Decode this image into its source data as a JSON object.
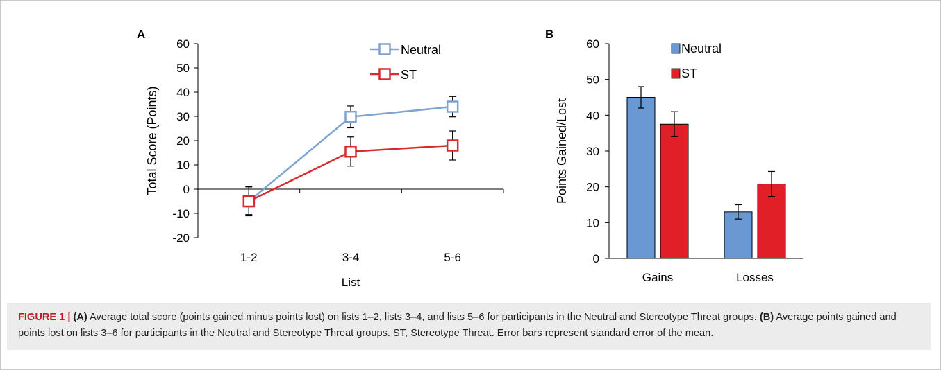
{
  "chart_data": [
    {
      "panel_label": "A",
      "type": "line",
      "xlabel": "List",
      "ylabel": "Total Score (Points)",
      "categories": [
        "1-2",
        "3-4",
        "5-6"
      ],
      "ylim": [
        -20,
        60
      ],
      "yticks": [
        -20,
        -10,
        0,
        10,
        20,
        30,
        40,
        50,
        60
      ],
      "grid": false,
      "legend": "top-right",
      "series": [
        {
          "name": "Neutral",
          "color": "#7ba3d4",
          "values": [
            -5,
            29.8,
            34
          ],
          "errors": [
            5.5,
            4.5,
            4.2
          ]
        },
        {
          "name": "ST",
          "color": "#d92a2e",
          "values": [
            -5,
            15.5,
            18
          ],
          "errors": [
            6,
            6,
            6
          ]
        }
      ]
    },
    {
      "panel_label": "B",
      "type": "bar",
      "xlabel": "",
      "ylabel": "Points Gained/Lost",
      "categories": [
        "Gains",
        "Losses"
      ],
      "ylim": [
        0,
        60
      ],
      "yticks": [
        0,
        10,
        20,
        30,
        40,
        50,
        60
      ],
      "grid": false,
      "legend": "top-right",
      "series": [
        {
          "name": "Neutral",
          "color": "#6998d2",
          "values": [
            45,
            13
          ],
          "errors": [
            3,
            2
          ]
        },
        {
          "name": "ST",
          "color": "#e11f27",
          "values": [
            37.5,
            20.8
          ],
          "errors": [
            3.5,
            3.5
          ]
        }
      ]
    }
  ],
  "caption": {
    "figure_label": "FIGURE 1",
    "separator": "|",
    "part_a_label": "(A)",
    "part_a_text": "Average total score (points gained minus points lost) on lists 1–2, lists 3–4, and lists 5–6 for participants in the Neutral and Stereotype Threat groups.",
    "part_b_label": "(B)",
    "part_b_text": "Average points gained and points lost on lists 3–6 for participants in the Neutral and Stereotype Threat groups. ST, Stereotype Threat. Error bars represent standard error of the mean."
  }
}
